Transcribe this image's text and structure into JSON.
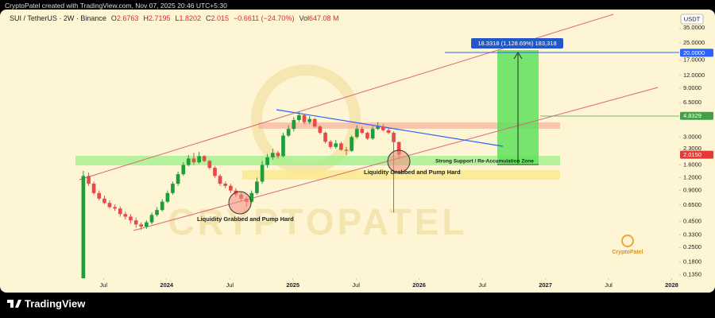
{
  "page": {
    "credit": "CryptoPatel created with TradingView.com, Nov 07, 2025 20:46 UTC+5:30",
    "brand": "TradingView"
  },
  "chart_data": {
    "type": "candlestick",
    "header": {
      "symbol": "SUI / TetherUS · 2W · Binance",
      "ohlc_keys": [
        "O",
        "H",
        "L",
        "C"
      ],
      "change": "−0.6611 (−24.70%)",
      "volume_key": "Vol",
      "volume": "647.08 M"
    },
    "currency": "USDT",
    "watermark": "CRYPTOPATEL",
    "logo_text": "CryptoPatel",
    "annotations": [
      "18.3318 (1,128.69%) 183,318",
      "Strong Support / Re-Accumulation Zone",
      "Liquidity Grabbed and Pump Hard",
      "Liquidity Grabbed and Pump Hard"
    ],
    "price_labels": [
      {
        "value": 20,
        "label": "20.0000",
        "color": "#2962ff"
      },
      {
        "value": 4.8329,
        "label": "4.8329",
        "color": "#43a047"
      },
      {
        "value": 2.015,
        "label": "2.0150",
        "color": "#e53935"
      }
    ],
    "log_scale": true,
    "up_color": "#1f9d3a",
    "down_color": "#e84a4a",
    "x": [
      2023.34,
      2023.382,
      2023.423,
      2023.465,
      2023.507,
      2023.548,
      2023.59,
      2023.632,
      2023.673,
      2023.715,
      2023.757,
      2023.798,
      2023.84,
      2023.882,
      2023.923,
      2023.965,
      2024.007,
      2024.048,
      2024.09,
      2024.132,
      2024.173,
      2024.215,
      2024.257,
      2024.298,
      2024.34,
      2024.382,
      2024.423,
      2024.465,
      2024.507,
      2024.548,
      2024.59,
      2024.632,
      2024.673,
      2024.715,
      2024.757,
      2024.798,
      2024.84,
      2024.882,
      2024.923,
      2024.965,
      2025.007,
      2025.048,
      2025.09,
      2025.132,
      2025.173,
      2025.215,
      2025.257,
      2025.298,
      2025.34,
      2025.382,
      2025.423,
      2025.465,
      2025.507,
      2025.548,
      2025.59,
      2025.632,
      2025.673,
      2025.715,
      2025.757,
      2025.798,
      2025.84
    ],
    "open": [
      0.12,
      1.25,
      1.05,
      0.85,
      0.75,
      0.68,
      0.62,
      0.6,
      0.53,
      0.5,
      0.46,
      0.42,
      0.4,
      0.44,
      0.52,
      0.58,
      0.7,
      0.85,
      1.05,
      1.3,
      1.6,
      1.85,
      1.7,
      1.95,
      1.75,
      1.5,
      1.25,
      1.05,
      1.0,
      0.9,
      0.82,
      0.75,
      0.7,
      0.85,
      1.1,
      1.6,
      1.9,
      2.1,
      1.95,
      3.1,
      3.6,
      4.4,
      4.9,
      4.2,
      4.5,
      3.8,
      3.3,
      2.7,
      2.4,
      2.6,
      2.25,
      2.2,
      3.0,
      3.6,
      3.3,
      2.9,
      3.6,
      3.8,
      3.5,
      3.3,
      2.6763
    ],
    "high": [
      1.4,
      1.35,
      1.1,
      0.9,
      0.8,
      0.72,
      0.66,
      0.63,
      0.56,
      0.53,
      0.49,
      0.44,
      0.46,
      0.55,
      0.62,
      0.74,
      0.9,
      1.1,
      1.38,
      1.7,
      2.0,
      2.1,
      2.15,
      2.0,
      1.8,
      1.55,
      1.3,
      1.1,
      1.05,
      0.95,
      0.86,
      0.78,
      0.9,
      1.2,
      1.75,
      2.05,
      2.3,
      2.2,
      3.3,
      3.9,
      4.7,
      5.3,
      5.0,
      4.8,
      4.6,
      3.9,
      3.4,
      2.8,
      2.8,
      2.7,
      2.4,
      3.1,
      3.9,
      3.8,
      3.4,
      3.8,
      4.2,
      4.0,
      3.7,
      3.4,
      2.7195
    ],
    "low": [
      0.1,
      1.0,
      0.82,
      0.72,
      0.66,
      0.6,
      0.57,
      0.5,
      0.47,
      0.43,
      0.39,
      0.37,
      0.38,
      0.42,
      0.5,
      0.56,
      0.68,
      0.82,
      1.0,
      1.25,
      1.55,
      1.6,
      1.65,
      1.7,
      1.45,
      1.2,
      1.0,
      0.95,
      0.85,
      0.78,
      0.7,
      0.62,
      0.68,
      0.82,
      1.05,
      1.5,
      1.8,
      1.85,
      1.9,
      3.0,
      3.4,
      4.2,
      4.0,
      4.0,
      3.7,
      3.2,
      2.6,
      2.3,
      2.3,
      2.2,
      2.0,
      2.15,
      2.9,
      3.2,
      2.8,
      2.8,
      3.5,
      3.4,
      3.2,
      0.55,
      1.8202
    ],
    "close": [
      1.25,
      1.05,
      0.85,
      0.75,
      0.68,
      0.62,
      0.6,
      0.53,
      0.5,
      0.46,
      0.42,
      0.4,
      0.44,
      0.52,
      0.58,
      0.7,
      0.85,
      1.05,
      1.3,
      1.6,
      1.85,
      1.7,
      1.95,
      1.75,
      1.5,
      1.25,
      1.05,
      1.0,
      0.9,
      0.82,
      0.75,
      0.7,
      0.85,
      1.1,
      1.6,
      1.9,
      2.1,
      1.95,
      3.1,
      3.6,
      4.4,
      4.9,
      4.2,
      4.5,
      3.8,
      3.3,
      2.7,
      2.4,
      2.6,
      2.25,
      2.2,
      3.0,
      3.6,
      3.3,
      2.9,
      3.6,
      3.8,
      3.5,
      3.3,
      2.6763,
      2.015
    ],
    "xlim": [
      2022.68,
      2028.06
    ],
    "xticks": [
      {
        "value": 2023.5,
        "label": "Jul"
      },
      2024,
      {
        "value": 2024.5,
        "label": "Jul"
      },
      2025,
      {
        "value": 2025.5,
        "label": "Jul"
      },
      2026,
      {
        "value": 2026.5,
        "label": "Jul"
      },
      2027,
      {
        "value": 2027.5,
        "label": "Jul"
      },
      2028
    ],
    "ylim": [
      0.125,
      51
    ],
    "yticks": [
      {
        "value": 35,
        "label": "35.0000"
      },
      {
        "value": 25,
        "label": "25.0000"
      },
      {
        "value": 17,
        "label": "17.0000"
      },
      {
        "value": 12,
        "label": "12.0000"
      },
      {
        "value": 9,
        "label": "9.0000"
      },
      {
        "value": 6.5,
        "label": "6.5000"
      },
      {
        "value": 3,
        "label": "3.0000"
      },
      {
        "value": 2.3,
        "label": "2.3000"
      },
      {
        "value": 1.6,
        "label": "1.6000"
      },
      {
        "value": 1.2,
        "label": "1.2000"
      },
      {
        "value": 0.9,
        "label": "0.9000"
      },
      {
        "value": 0.65,
        "label": "0.6500"
      },
      {
        "value": 0.45,
        "label": "0.4500"
      },
      {
        "value": 0.33,
        "label": "0.3300"
      },
      {
        "value": 0.25,
        "label": "0.2500"
      },
      {
        "value": 0.18,
        "label": "0.1800"
      },
      {
        "value": 0.135,
        "label": "0.1350"
      }
    ]
  }
}
